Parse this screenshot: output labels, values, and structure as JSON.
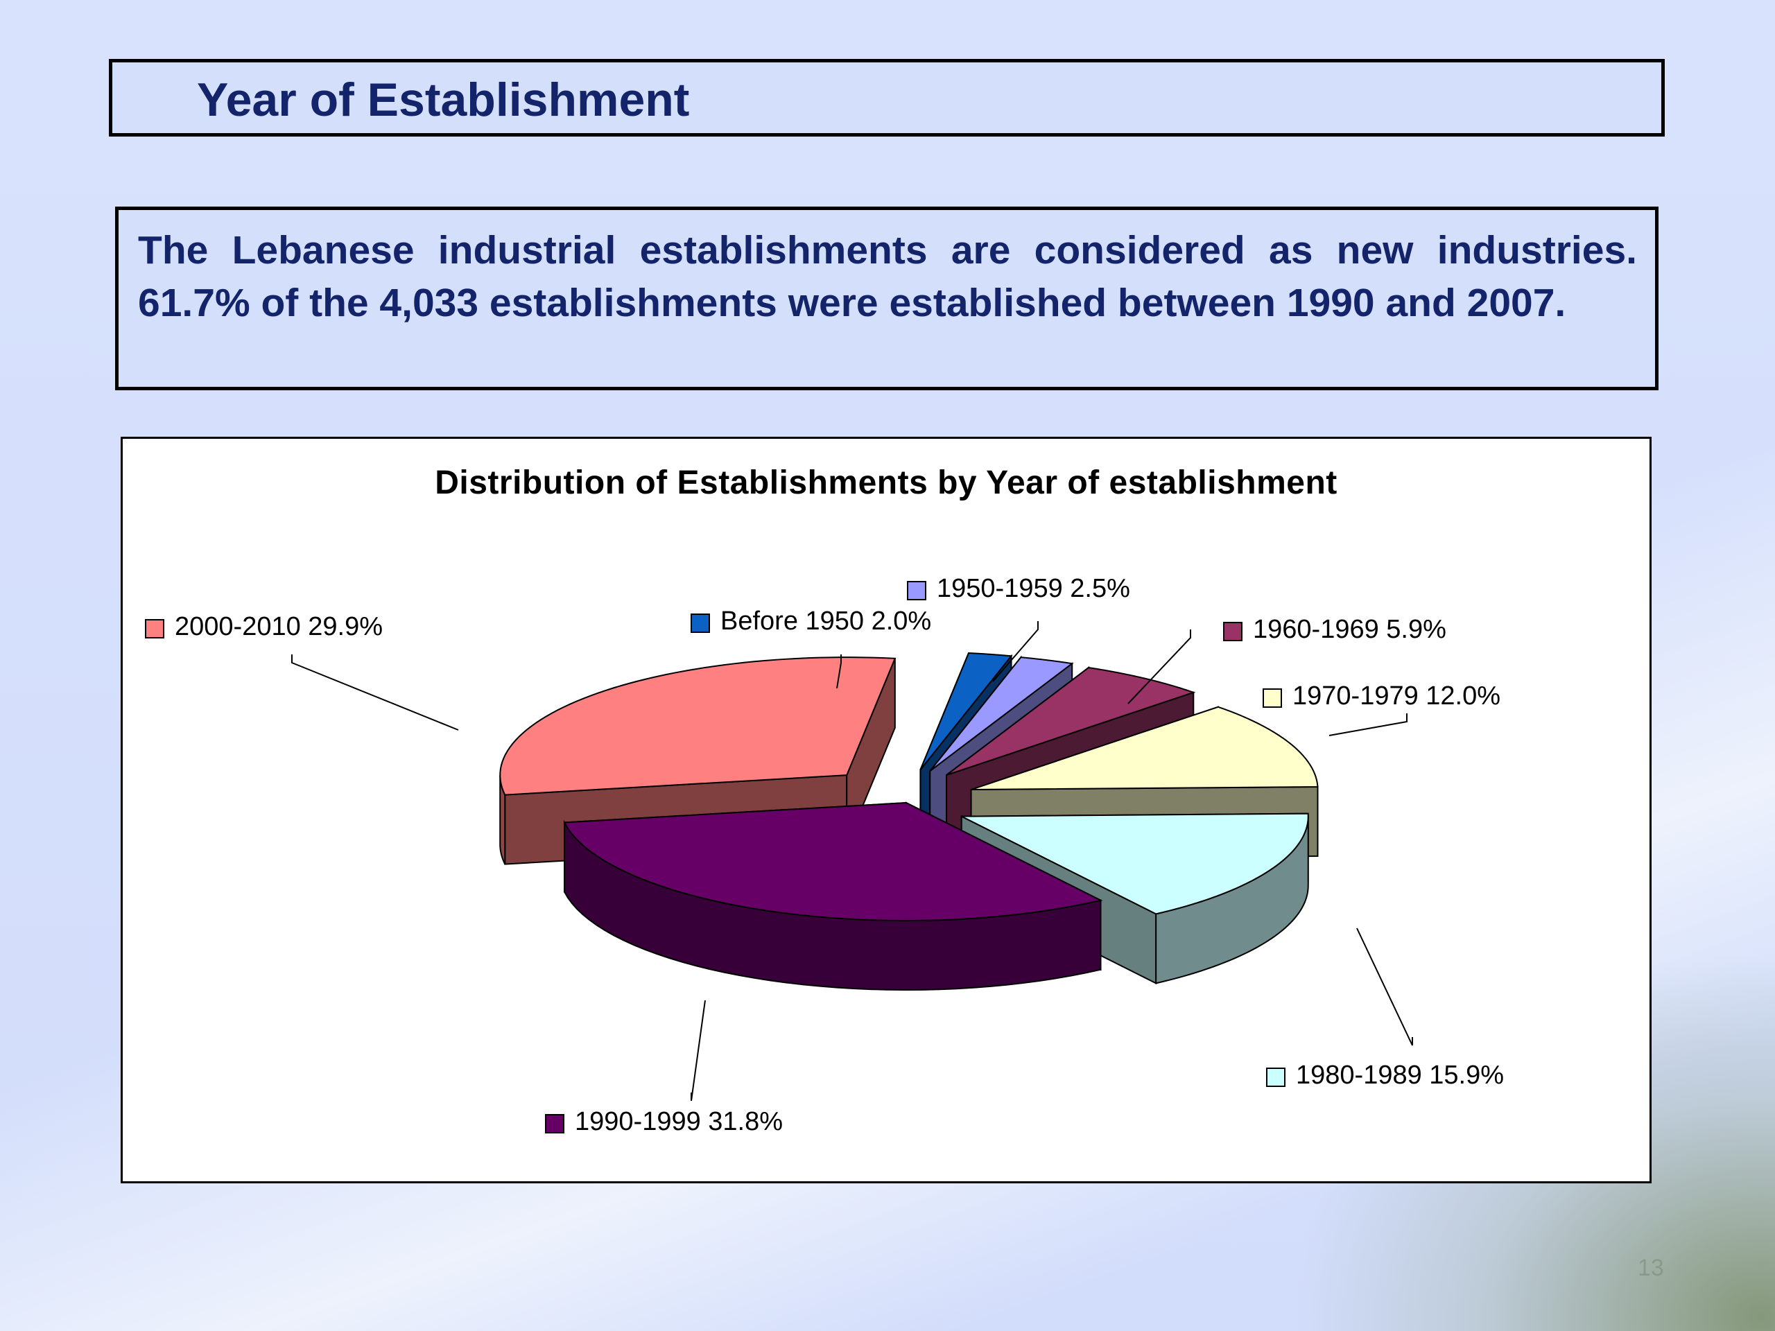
{
  "slide": {
    "title": "Year of Establishment",
    "body": "The Lebanese industrial establishments are considered as new industries. 61.7% of the 4,033 establishments were established between 1990 and 2007.",
    "page_number": "13"
  },
  "chart_data": {
    "type": "pie",
    "title": "Distribution of Establishments by Year of establishment",
    "three_d": true,
    "exploded": true,
    "unit": "%",
    "slices": [
      {
        "label": "Before 1950",
        "value": 2.0,
        "display": "Before 1950 2.0%",
        "color": "#0b62c4"
      },
      {
        "label": "1950-1959",
        "value": 2.5,
        "display": "1950-1959 2.5%",
        "color": "#9999ff"
      },
      {
        "label": "1960-1969",
        "value": 5.9,
        "display": "1960-1969 5.9%",
        "color": "#993366"
      },
      {
        "label": "1970-1979",
        "value": 12.0,
        "display": "1970-1979 12.0%",
        "color": "#ffffcc"
      },
      {
        "label": "1980-1989",
        "value": 15.9,
        "display": "1980-1989 15.9%",
        "color": "#ccffff"
      },
      {
        "label": "1990-1999",
        "value": 31.8,
        "display": "1990-1999 31.8%",
        "color": "#660066"
      },
      {
        "label": "2000-2010",
        "value": 29.9,
        "display": "2000-2010 29.9%",
        "color": "#ff8080"
      }
    ]
  }
}
